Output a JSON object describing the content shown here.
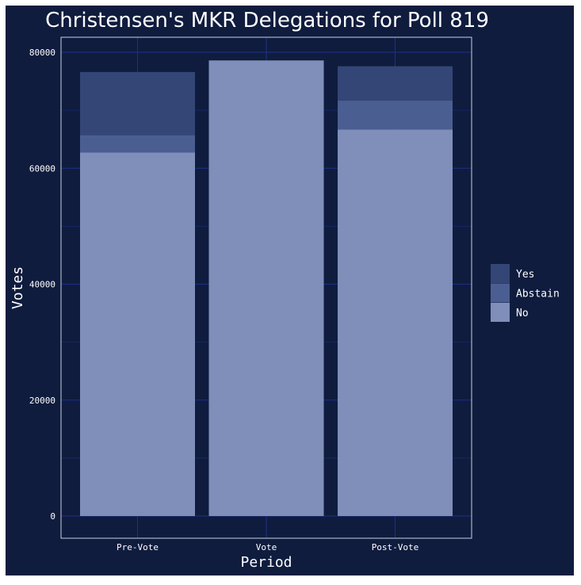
{
  "colors": {
    "background": "#0f1c3e",
    "panel_border": "#c9cfe0",
    "grid_major": "#1f2f86",
    "grid_minor": "#192a6e",
    "text": "#ffffff",
    "Yes": "#344675",
    "Abstain": "#4b5e92",
    "No": "#7f8fba"
  },
  "chart_data": {
    "type": "bar",
    "stacked": true,
    "title": "Christensen's MKR Delegations for Poll 819",
    "xlabel": "Period",
    "ylabel": "Votes",
    "categories": [
      "Pre-Vote",
      "Vote",
      "Post-Vote"
    ],
    "series": [
      {
        "name": "No",
        "values": [
          62700,
          78600,
          66700
        ]
      },
      {
        "name": "Abstain",
        "values": [
          3000,
          0,
          5000
        ]
      },
      {
        "name": "Yes",
        "values": [
          10900,
          0,
          5900
        ]
      }
    ],
    "ylim": [
      0,
      80000
    ],
    "yticks": [
      0,
      20000,
      40000,
      60000,
      80000
    ],
    "grid": true,
    "legend": {
      "position": "right",
      "entries": [
        "Yes",
        "Abstain",
        "No"
      ]
    }
  }
}
